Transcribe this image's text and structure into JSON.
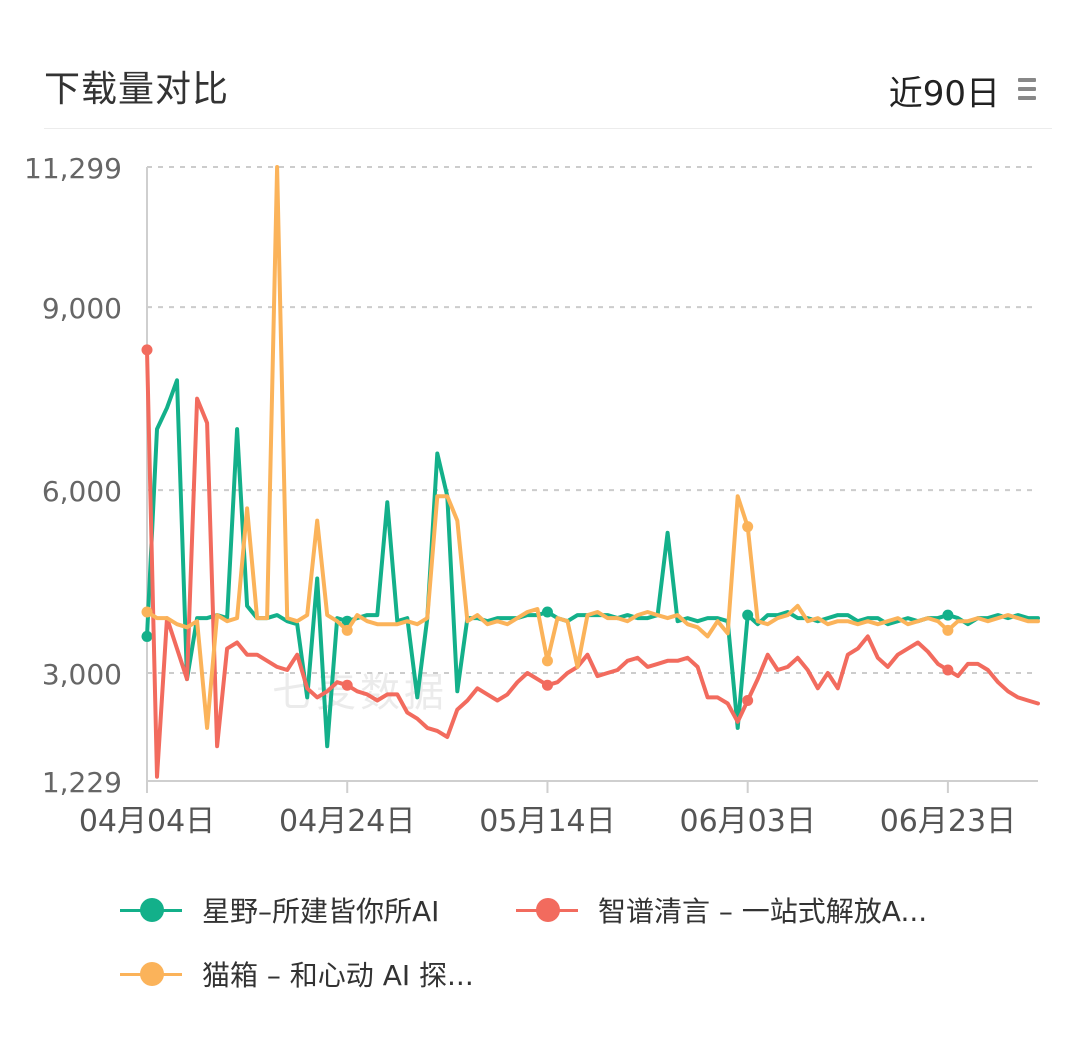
{
  "header": {
    "title": "下载量对比",
    "range_label": "近90日",
    "menu_icon": "hamburger-menu-icon"
  },
  "watermark": "七麦数据",
  "colors": {
    "green": "#13b08a",
    "red": "#f26b5e",
    "orange": "#fbb35a",
    "grid": "#cccccc",
    "axis": "#cfcfcf"
  },
  "chart_data": {
    "type": "line",
    "title": "下载量对比",
    "xlabel": "",
    "ylabel": "",
    "ylim": [
      1229,
      11299
    ],
    "y_ticks": [
      {
        "value": 1229,
        "label": "1,229"
      },
      {
        "value": 3000,
        "label": "3,000"
      },
      {
        "value": 6000,
        "label": "6,000"
      },
      {
        "value": 9000,
        "label": "9,000"
      },
      {
        "value": 11299,
        "label": "11,299"
      }
    ],
    "x_ticks": [
      {
        "index": 0,
        "label": "04月04日"
      },
      {
        "index": 20,
        "label": "04月24日"
      },
      {
        "index": 40,
        "label": "05月14日"
      },
      {
        "index": 60,
        "label": "06月03日"
      },
      {
        "index": 80,
        "label": "06月23日"
      }
    ],
    "x_start_label": "04月04日",
    "x_count": 90,
    "grid": true,
    "legend_position": "bottom",
    "series": [
      {
        "name": "星野–所建皆你所AI",
        "color": "#13b08a",
        "values": [
          3600,
          7000,
          7350,
          7800,
          2900,
          3900,
          3900,
          3950,
          3900,
          7000,
          4100,
          3900,
          3900,
          3950,
          3850,
          3800,
          2600,
          4550,
          1800,
          3900,
          3850,
          3900,
          3950,
          3950,
          5800,
          3850,
          3900,
          2600,
          3900,
          6600,
          5900,
          2700,
          3900,
          3900,
          3850,
          3900,
          3900,
          3900,
          3950,
          3950,
          4000,
          3900,
          3850,
          3950,
          3950,
          3950,
          3950,
          3900,
          3950,
          3900,
          3900,
          3950,
          5300,
          3850,
          3900,
          3850,
          3900,
          3900,
          3850,
          2100,
          3950,
          3800,
          3950,
          3950,
          4000,
          3900,
          3900,
          3850,
          3900,
          3950,
          3950,
          3850,
          3900,
          3900,
          3800,
          3850,
          3900,
          3850,
          3900,
          3900,
          3950,
          3900,
          3800,
          3900,
          3900,
          3950,
          3900,
          3950,
          3900,
          3900
        ]
      },
      {
        "name": "智谱清言 – 一站式解放A...",
        "color": "#f26b5e",
        "values": [
          8300,
          1300,
          3900,
          3400,
          2900,
          7500,
          7100,
          1800,
          3400,
          3500,
          3300,
          3300,
          3200,
          3100,
          3050,
          3300,
          2750,
          2600,
          2700,
          2850,
          2800,
          2700,
          2650,
          2550,
          2650,
          2650,
          2350,
          2250,
          2100,
          2050,
          1950,
          2400,
          2550,
          2750,
          2650,
          2550,
          2650,
          2850,
          3000,
          2900,
          2800,
          2850,
          3000,
          3100,
          3300,
          2950,
          3000,
          3050,
          3200,
          3250,
          3100,
          3150,
          3200,
          3200,
          3250,
          3100,
          2600,
          2600,
          2500,
          2200,
          2550,
          2900,
          3300,
          3050,
          3100,
          3250,
          3050,
          2750,
          3000,
          2750,
          3300,
          3400,
          3600,
          3250,
          3100,
          3300,
          3400,
          3500,
          3350,
          3150,
          3050,
          2950,
          3150,
          3150,
          3050,
          2850,
          2700,
          2600,
          2550,
          2500
        ]
      },
      {
        "name": "猫箱 – 和心动 AI 探...",
        "color": "#fbb35a",
        "values": [
          4000,
          3900,
          3900,
          3800,
          3750,
          3850,
          2100,
          3950,
          3850,
          3900,
          5700,
          3900,
          3900,
          11299,
          3900,
          3850,
          3950,
          5500,
          3950,
          3850,
          3700,
          3950,
          3850,
          3800,
          3800,
          3800,
          3850,
          3800,
          3900,
          5900,
          5900,
          5500,
          3850,
          3950,
          3800,
          3850,
          3800,
          3900,
          4000,
          4050,
          3200,
          3900,
          3850,
          3100,
          3950,
          4000,
          3900,
          3900,
          3850,
          3950,
          4000,
          3950,
          3900,
          3950,
          3800,
          3750,
          3600,
          3850,
          3650,
          5900,
          5400,
          3850,
          3800,
          3900,
          3950,
          4100,
          3850,
          3900,
          3800,
          3850,
          3850,
          3800,
          3850,
          3800,
          3850,
          3900,
          3800,
          3850,
          3900,
          3850,
          3700,
          3850,
          3850,
          3900,
          3850,
          3900,
          3950,
          3900,
          3850,
          3850
        ]
      }
    ]
  }
}
